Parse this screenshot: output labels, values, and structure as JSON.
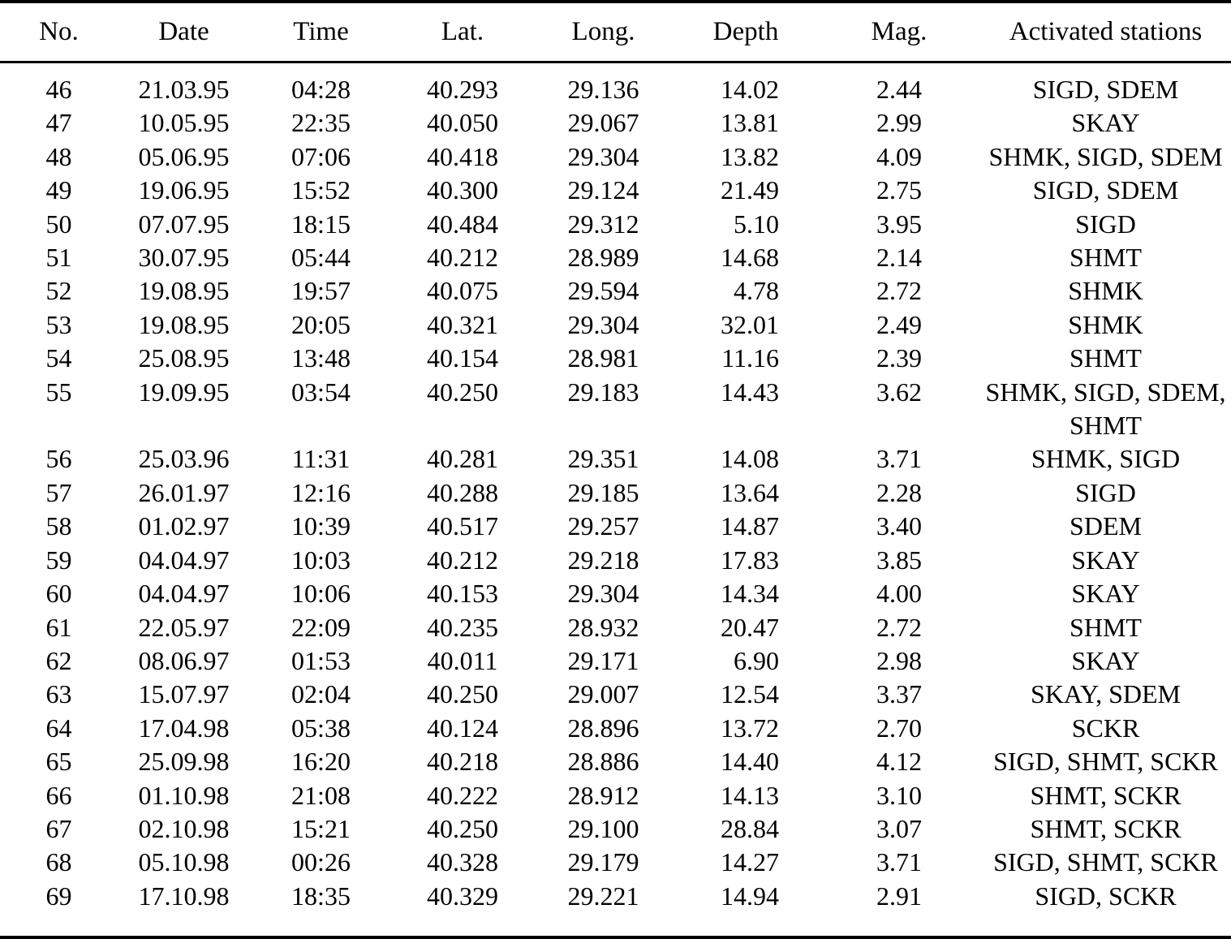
{
  "colors": {
    "text": "#000000",
    "background": "#ffffff",
    "rule": "#000000"
  },
  "table": {
    "columns": [
      "No.",
      "Date",
      "Time",
      "Lat.",
      "Long.",
      "Depth",
      "Mag.",
      "Activated stations"
    ],
    "fields": [
      "no",
      "date",
      "time",
      "lat",
      "long",
      "depth",
      "mag",
      "stations"
    ],
    "rows": [
      {
        "no": "46",
        "date": "21.03.95",
        "time": "04:28",
        "lat": "40.293",
        "long": "29.136",
        "depth": "14.02",
        "mag": "2.44",
        "stations": "SIGD, SDEM"
      },
      {
        "no": "47",
        "date": "10.05.95",
        "time": "22:35",
        "lat": "40.050",
        "long": "29.067",
        "depth": "13.81",
        "mag": "2.99",
        "stations": "SKAY"
      },
      {
        "no": "48",
        "date": "05.06.95",
        "time": "07:06",
        "lat": "40.418",
        "long": "29.304",
        "depth": "13.82",
        "mag": "4.09",
        "stations": "SHMK, SIGD, SDEM"
      },
      {
        "no": "49",
        "date": "19.06.95",
        "time": "15:52",
        "lat": "40.300",
        "long": "29.124",
        "depth": "21.49",
        "mag": "2.75",
        "stations": "SIGD, SDEM"
      },
      {
        "no": "50",
        "date": "07.07.95",
        "time": "18:15",
        "lat": "40.484",
        "long": "29.312",
        "depth": "5.10",
        "mag": "3.95",
        "stations": "SIGD"
      },
      {
        "no": "51",
        "date": "30.07.95",
        "time": "05:44",
        "lat": "40.212",
        "long": "28.989",
        "depth": "14.68",
        "mag": "2.14",
        "stations": "SHMT"
      },
      {
        "no": "52",
        "date": "19.08.95",
        "time": "19:57",
        "lat": "40.075",
        "long": "29.594",
        "depth": "4.78",
        "mag": "2.72",
        "stations": "SHMK"
      },
      {
        "no": "53",
        "date": "19.08.95",
        "time": "20:05",
        "lat": "40.321",
        "long": "29.304",
        "depth": "32.01",
        "mag": "2.49",
        "stations": "SHMK"
      },
      {
        "no": "54",
        "date": "25.08.95",
        "time": "13:48",
        "lat": "40.154",
        "long": "28.981",
        "depth": "11.16",
        "mag": "2.39",
        "stations": "SHMT"
      },
      {
        "no": "55",
        "date": "19.09.95",
        "time": "03:54",
        "lat": "40.250",
        "long": "29.183",
        "depth": "14.43",
        "mag": "3.62",
        "stations": "SHMK, SIGD, SDEM,\nSHMT"
      },
      {
        "no": "56",
        "date": "25.03.96",
        "time": "11:31",
        "lat": "40.281",
        "long": "29.351",
        "depth": "14.08",
        "mag": "3.71",
        "stations": "SHMK, SIGD"
      },
      {
        "no": "57",
        "date": "26.01.97",
        "time": "12:16",
        "lat": "40.288",
        "long": "29.185",
        "depth": "13.64",
        "mag": "2.28",
        "stations": "SIGD"
      },
      {
        "no": "58",
        "date": "01.02.97",
        "time": "10:39",
        "lat": "40.517",
        "long": "29.257",
        "depth": "14.87",
        "mag": "3.40",
        "stations": "SDEM"
      },
      {
        "no": "59",
        "date": "04.04.97",
        "time": "10:03",
        "lat": "40.212",
        "long": "29.218",
        "depth": "17.83",
        "mag": "3.85",
        "stations": "SKAY"
      },
      {
        "no": "60",
        "date": "04.04.97",
        "time": "10:06",
        "lat": "40.153",
        "long": "29.304",
        "depth": "14.34",
        "mag": "4.00",
        "stations": "SKAY"
      },
      {
        "no": "61",
        "date": "22.05.97",
        "time": "22:09",
        "lat": "40.235",
        "long": "28.932",
        "depth": "20.47",
        "mag": "2.72",
        "stations": "SHMT"
      },
      {
        "no": "62",
        "date": "08.06.97",
        "time": "01:53",
        "lat": "40.011",
        "long": "29.171",
        "depth": "6.90",
        "mag": "2.98",
        "stations": "SKAY"
      },
      {
        "no": "63",
        "date": "15.07.97",
        "time": "02:04",
        "lat": "40.250",
        "long": "29.007",
        "depth": "12.54",
        "mag": "3.37",
        "stations": "SKAY, SDEM"
      },
      {
        "no": "64",
        "date": "17.04.98",
        "time": "05:38",
        "lat": "40.124",
        "long": "28.896",
        "depth": "13.72",
        "mag": "2.70",
        "stations": "SCKR"
      },
      {
        "no": "65",
        "date": "25.09.98",
        "time": "16:20",
        "lat": "40.218",
        "long": "28.886",
        "depth": "14.40",
        "mag": "4.12",
        "stations": "SIGD, SHMT, SCKR"
      },
      {
        "no": "66",
        "date": "01.10.98",
        "time": "21:08",
        "lat": "40.222",
        "long": "28.912",
        "depth": "14.13",
        "mag": "3.10",
        "stations": "SHMT, SCKR"
      },
      {
        "no": "67",
        "date": "02.10.98",
        "time": "15:21",
        "lat": "40.250",
        "long": "29.100",
        "depth": "28.84",
        "mag": "3.07",
        "stations": "SHMT, SCKR"
      },
      {
        "no": "68",
        "date": "05.10.98",
        "time": "00:26",
        "lat": "40.328",
        "long": "29.179",
        "depth": "14.27",
        "mag": "3.71",
        "stations": "SIGD, SHMT, SCKR"
      },
      {
        "no": "69",
        "date": "17.10.98",
        "time": "18:35",
        "lat": "40.329",
        "long": "29.221",
        "depth": "14.94",
        "mag": "2.91",
        "stations": "SIGD, SCKR"
      }
    ]
  }
}
